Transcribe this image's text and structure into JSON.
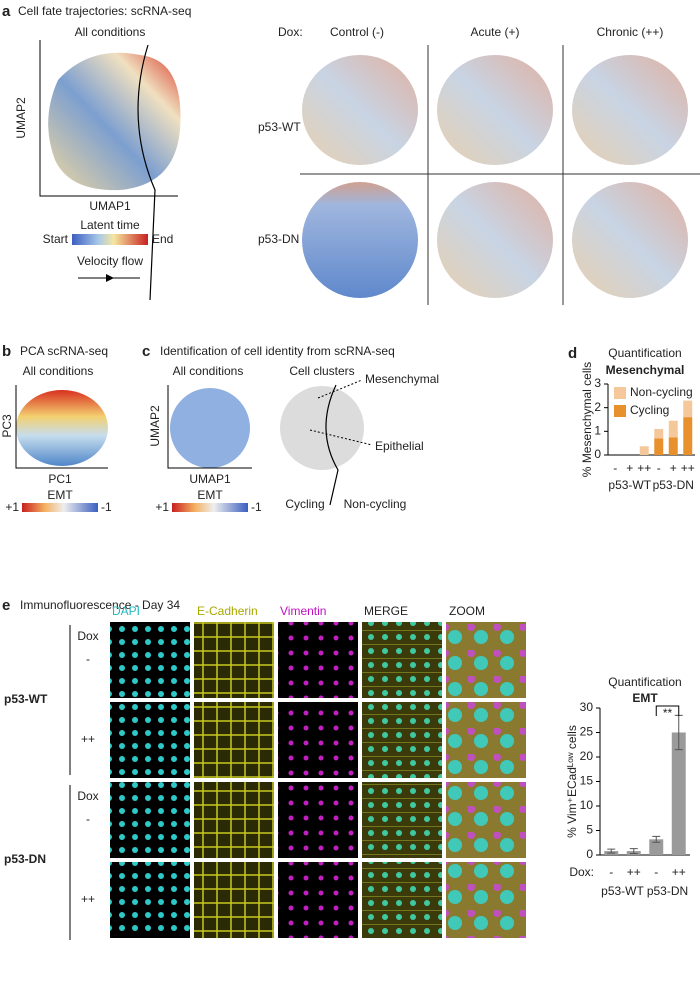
{
  "panel_a": {
    "letter": "a",
    "title": "Cell fate trajectories: scRNA-seq",
    "all_conditions": "All conditions",
    "xlabel": "UMAP1",
    "ylabel": "UMAP2",
    "colorbar_title": "Latent time",
    "colorbar_start": "Start",
    "colorbar_end": "End",
    "velocity": "Velocity flow",
    "dox": "Dox:",
    "columns": [
      "Control (-)",
      "Acute (+)",
      "Chronic (++)"
    ],
    "rows": [
      "p53-WT",
      "p53-DN"
    ]
  },
  "panel_b": {
    "letter": "b",
    "title": "PCA scRNA-seq",
    "subtitle": "All conditions",
    "xlabel": "PC1",
    "ylabel": "PC3",
    "colorbar_title": "EMT",
    "colorbar_left": "+1",
    "colorbar_right": "-1"
  },
  "panel_c": {
    "letter": "c",
    "title": "Identification of cell identity from scRNA-seq",
    "subtitle_left": "All conditions",
    "subtitle_right": "Cell clusters",
    "xlabel": "UMAP1",
    "ylabel": "UMAP2",
    "colorbar_title": "EMT",
    "colorbar_left": "+1",
    "colorbar_right": "-1",
    "cluster_labels": [
      "Mesenchymal",
      "Epithelial",
      "Cycling",
      "Non-cycling"
    ]
  },
  "panel_d": {
    "letter": "d"
  },
  "panel_e": {
    "letter": "e",
    "title": "Immunofluorescence - Day 34",
    "channels": [
      "DAPI",
      "E-Cadherin",
      "Vimentin",
      "MERGE",
      "ZOOM"
    ],
    "rows": [
      {
        "group": "p53-WT",
        "dox_label": "Dox",
        "conditions": [
          "-",
          "++"
        ]
      },
      {
        "group": "p53-DN",
        "dox_label": "Dox",
        "conditions": [
          "-",
          "++"
        ]
      }
    ]
  },
  "chart_data": [
    {
      "type": "bar",
      "stacked": true,
      "title": "Quantification",
      "subtitle": "Mesenchymal",
      "ylabel": "% Mesenchymal cells",
      "categories": [
        "-",
        "+",
        "++",
        "-",
        "+",
        "++"
      ],
      "groups": [
        "p53-WT",
        "p53-DN"
      ],
      "series": [
        {
          "name": "Cycling",
          "color": "#e8912c",
          "values": [
            0,
            0,
            0,
            0.7,
            0.75,
            1.6
          ]
        },
        {
          "name": "Non-cycling",
          "color": "#f5c89c",
          "values": [
            0,
            0,
            0.37,
            0.4,
            0.7,
            0.7
          ]
        }
      ],
      "ylim": [
        0,
        3
      ],
      "yticks": [
        0,
        1,
        2,
        3
      ],
      "legend": "upper left"
    },
    {
      "type": "bar",
      "title": "Quantification",
      "subtitle": "EMT",
      "ylabel": "% Vim⁺ECadᴸᵒʷ cells",
      "x_prefix": "Dox:",
      "categories": [
        "-",
        "++",
        "-",
        "++"
      ],
      "groups": [
        "p53-WT",
        "p53-DN"
      ],
      "values": [
        0.8,
        0.8,
        3.2,
        25
      ],
      "errors": [
        0.4,
        0.5,
        0.6,
        3.5
      ],
      "color": "#9a9a9a",
      "ylim": [
        0,
        30
      ],
      "yticks": [
        0,
        5,
        10,
        15,
        20,
        25,
        30
      ],
      "annotation": "**"
    }
  ]
}
